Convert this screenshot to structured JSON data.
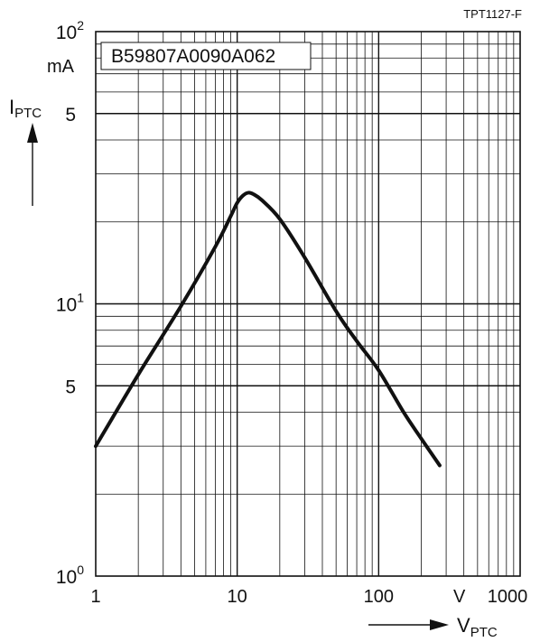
{
  "header": {
    "code": "TPT1127-F"
  },
  "chart_data": {
    "type": "line",
    "scale": {
      "x": "log",
      "y": "log"
    },
    "xlim": [
      1,
      1000
    ],
    "ylim": [
      1,
      100
    ],
    "grid": true,
    "part_number": "B59807A0090A062",
    "x_ticks": [
      {
        "value": 1,
        "label": "1"
      },
      {
        "value": 10,
        "label": "10"
      },
      {
        "value": 100,
        "label": "100"
      },
      {
        "value": 1000,
        "label": "1000"
      }
    ],
    "y_ticks": [
      {
        "value": 1,
        "base": "10",
        "exp": "0"
      },
      {
        "value": 5,
        "label": "5"
      },
      {
        "value": 10,
        "base": "10",
        "exp": "1"
      },
      {
        "value": 50,
        "label": "5"
      },
      {
        "value": 100,
        "base": "10",
        "exp": "2"
      }
    ],
    "x_unit": "V",
    "y_unit": "mA",
    "x_axis": {
      "symbol": "V",
      "subscript": "PTC"
    },
    "y_axis": {
      "symbol": "I",
      "subscript": "PTC"
    },
    "series": [
      {
        "x": [
          1,
          2,
          4,
          7,
          9,
          10,
          11,
          12,
          13,
          15,
          20,
          30,
          50,
          70,
          100,
          150,
          200,
          270
        ],
        "y": [
          3.0,
          5.5,
          9.8,
          16.2,
          21.0,
          23.5,
          25.0,
          25.6,
          25.3,
          24.0,
          20.5,
          14.8,
          9.4,
          7.3,
          5.7,
          4.0,
          3.2,
          2.55
        ]
      }
    ]
  }
}
